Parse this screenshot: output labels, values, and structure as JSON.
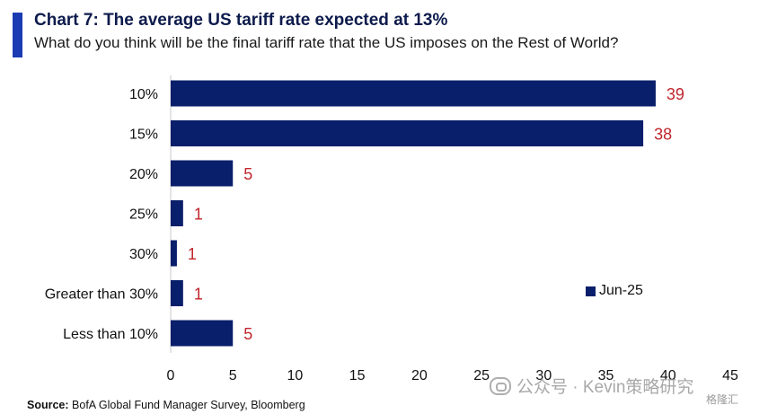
{
  "title": "Chart 7: The average US tariff rate expected at 13%",
  "subtitle": "What do you think will be the final tariff rate that the US imposes on the Rest of World?",
  "source_label": "Source:",
  "source_text": "BofA Global Fund Manager Survey, Bloomberg",
  "watermark": "公众号 · Kevin策略研究",
  "watermark_corner": "格隆汇",
  "colors": {
    "bar": "#0a1f6b",
    "value_label": "#c0262d",
    "accent": "#1b3bb3"
  },
  "chart_data": {
    "type": "bar",
    "orientation": "horizontal",
    "title": "Chart 7: The average US tariff rate expected at 13%",
    "subtitle": "What do you think will be the final tariff rate that the US imposes on the Rest of World?",
    "categories": [
      "10%",
      "15%",
      "20%",
      "25%",
      "30%",
      "Greater than 30%",
      "Less than 10%"
    ],
    "series": [
      {
        "name": "Jun-25",
        "values": [
          39,
          38,
          5,
          1,
          0.5,
          1,
          5
        ]
      }
    ],
    "data_labels": [
      "39",
      "38",
      "5",
      "1",
      "1",
      "1",
      "5"
    ],
    "xlim": [
      0,
      45
    ],
    "xticks": [
      "0",
      "5",
      "10",
      "15",
      "20",
      "25",
      "30",
      "35",
      "40",
      "45"
    ],
    "xlabel": "",
    "ylabel": "",
    "legend_position": "right",
    "grid": false
  }
}
